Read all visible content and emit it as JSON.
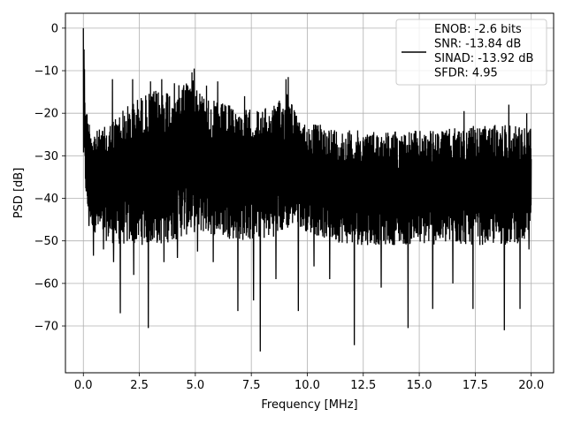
{
  "chart_data": {
    "type": "line",
    "xlabel": "Frequency [MHz]",
    "ylabel": "PSD [dB]",
    "xlim": [
      -0.8,
      21.0
    ],
    "ylim": [
      -81,
      3.5
    ],
    "grid": true,
    "x_ticks": [
      0.0,
      2.5,
      5.0,
      7.5,
      10.0,
      12.5,
      15.0,
      17.5,
      20.0
    ],
    "x_tick_labels": [
      "0.0",
      "2.5",
      "5.0",
      "7.5",
      "10.0",
      "12.5",
      "15.0",
      "17.5",
      "20.0"
    ],
    "y_ticks": [
      0,
      -10,
      -20,
      -30,
      -40,
      -50,
      -60,
      -70
    ],
    "y_tick_labels": [
      "0",
      "−10",
      "−20",
      "−30",
      "−40",
      "−50",
      "−60",
      "−70"
    ],
    "line_color": "#000000",
    "legend": {
      "placement": "top-right",
      "lines": [
        "ENOB: -2.6 bits",
        "SNR: -13.84 dB",
        "SINAD: -13.92 dB",
        "SFDR: 4.95"
      ]
    },
    "series": [
      {
        "x_range": [
          0.0,
          20.0
        ],
        "envelope_top": [
          [
            0.0,
            0
          ],
          [
            0.05,
            -8
          ],
          [
            0.1,
            -18
          ],
          [
            0.3,
            -22
          ],
          [
            0.6,
            -24
          ],
          [
            1.0,
            -23
          ],
          [
            1.5,
            -20
          ],
          [
            2.0,
            -18
          ],
          [
            2.5,
            -16
          ],
          [
            3.0,
            -15
          ],
          [
            3.5,
            -14
          ],
          [
            4.0,
            -13
          ],
          [
            4.5,
            -12
          ],
          [
            4.9,
            -10
          ],
          [
            5.3,
            -15
          ],
          [
            5.8,
            -17
          ],
          [
            6.5,
            -18
          ],
          [
            7.0,
            -19
          ],
          [
            7.5,
            -19
          ],
          [
            8.0,
            -19
          ],
          [
            8.5,
            -18
          ],
          [
            9.0,
            -16
          ],
          [
            9.1,
            -12
          ],
          [
            9.3,
            -16
          ],
          [
            9.6,
            -22
          ],
          [
            10.0,
            -22
          ],
          [
            11.0,
            -23
          ],
          [
            12.0,
            -24
          ],
          [
            13.0,
            -24
          ],
          [
            14.0,
            -24
          ],
          [
            15.0,
            -24
          ],
          [
            16.0,
            -24
          ],
          [
            17.0,
            -23
          ],
          [
            18.0,
            -23
          ],
          [
            19.0,
            -22
          ],
          [
            20.0,
            -23
          ]
        ],
        "envelope_bottom": [
          [
            0.0,
            -32
          ],
          [
            0.2,
            -45
          ],
          [
            0.5,
            -48
          ],
          [
            1.0,
            -50
          ],
          [
            1.5,
            -51
          ],
          [
            2.0,
            -51
          ],
          [
            2.5,
            -51
          ],
          [
            3.0,
            -51
          ],
          [
            3.5,
            -51
          ],
          [
            4.0,
            -50
          ],
          [
            5.0,
            -48
          ],
          [
            6.0,
            -49
          ],
          [
            7.0,
            -50
          ],
          [
            8.0,
            -50
          ],
          [
            9.0,
            -48
          ],
          [
            9.5,
            -46
          ],
          [
            10.0,
            -48
          ],
          [
            11.0,
            -50
          ],
          [
            12.0,
            -51
          ],
          [
            13.0,
            -51
          ],
          [
            14.0,
            -51
          ],
          [
            15.0,
            -51
          ],
          [
            16.0,
            -51
          ],
          [
            17.0,
            -51
          ],
          [
            18.0,
            -51
          ],
          [
            19.0,
            -51
          ],
          [
            20.0,
            -50
          ]
        ],
        "peaks": [
          [
            0.0,
            0.0
          ],
          [
            0.03,
            -5.0
          ],
          [
            1.3,
            -12.0
          ],
          [
            2.2,
            -12.0
          ],
          [
            3.0,
            -12.5
          ],
          [
            3.5,
            -12.0
          ],
          [
            4.2,
            -12.0
          ],
          [
            4.6,
            -13.0
          ],
          [
            4.95,
            -9.5
          ],
          [
            5.5,
            -13.5
          ],
          [
            6.0,
            -12.5
          ],
          [
            7.2,
            -16.0
          ],
          [
            7.9,
            -15.0
          ],
          [
            9.05,
            -12.0
          ],
          [
            9.15,
            -11.5
          ],
          [
            17.0,
            -19.5
          ],
          [
            19.0,
            -18.0
          ],
          [
            19.8,
            -20.0
          ]
        ],
        "dips": [
          [
            0.25,
            -46.5
          ],
          [
            0.45,
            -53.5
          ],
          [
            0.9,
            -52.0
          ],
          [
            1.35,
            -55.0
          ],
          [
            1.65,
            -67.0
          ],
          [
            2.25,
            -58.0
          ],
          [
            2.9,
            -70.5
          ],
          [
            3.6,
            -55.0
          ],
          [
            4.2,
            -54.0
          ],
          [
            5.1,
            -52.5
          ],
          [
            5.8,
            -55.0
          ],
          [
            6.9,
            -66.5
          ],
          [
            7.6,
            -64.0
          ],
          [
            7.9,
            -76.0
          ],
          [
            8.6,
            -59.0
          ],
          [
            9.6,
            -66.5
          ],
          [
            10.3,
            -56.0
          ],
          [
            11.0,
            -59.0
          ],
          [
            12.1,
            -74.5
          ],
          [
            13.3,
            -61.0
          ],
          [
            14.5,
            -70.5
          ],
          [
            15.6,
            -66.0
          ],
          [
            16.5,
            -60.0
          ],
          [
            17.4,
            -66.0
          ],
          [
            18.8,
            -71.0
          ],
          [
            19.5,
            -66.0
          ],
          [
            19.9,
            -52.0
          ]
        ]
      }
    ]
  }
}
